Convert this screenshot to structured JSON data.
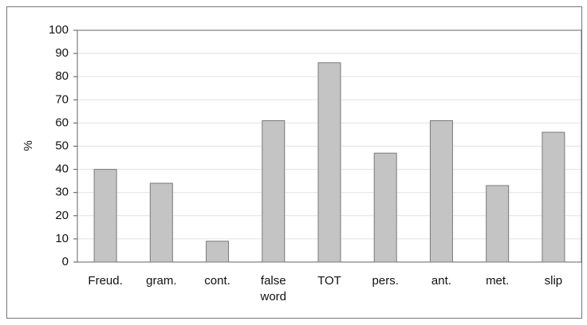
{
  "chart_data": {
    "type": "bar",
    "y_label": "%",
    "categories": [
      "Freud.",
      "gram.",
      "cont.",
      "false word",
      "TOT",
      "pers.",
      "ant.",
      "met.",
      "slip"
    ],
    "values": [
      40,
      34,
      9,
      61,
      86,
      47,
      61,
      33,
      56
    ],
    "color": "#c4c4c4",
    "ylim": [
      0,
      100
    ],
    "yticks": [
      0,
      10,
      20,
      30,
      40,
      50,
      60,
      70,
      80,
      90,
      100
    ],
    "grid": true
  }
}
